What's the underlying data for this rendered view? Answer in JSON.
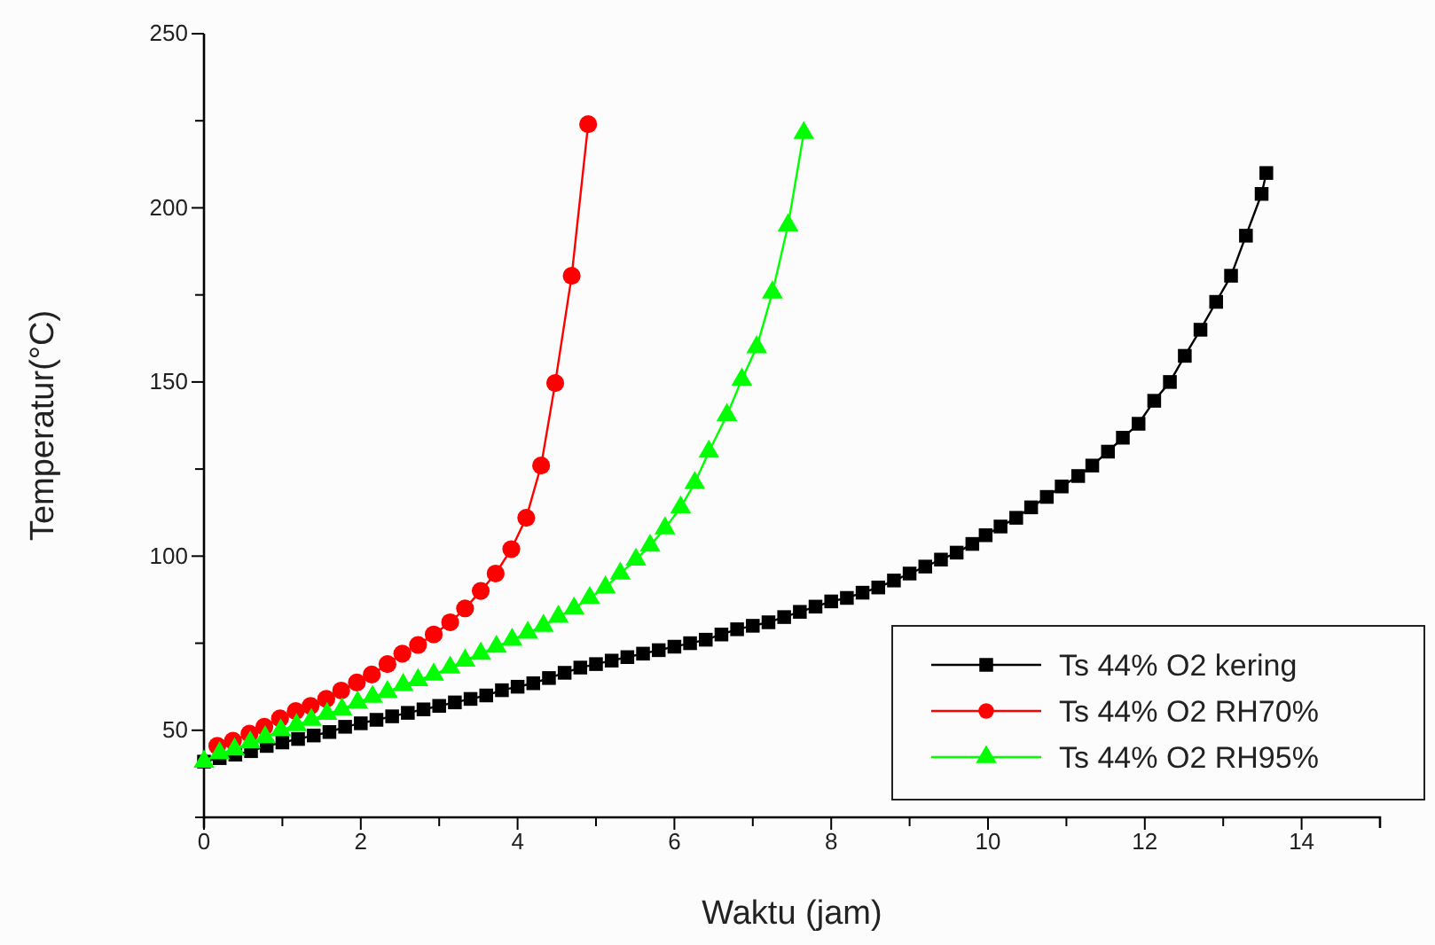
{
  "chart_data": {
    "type": "line",
    "xlabel": "Waktu (jam)",
    "ylabel": "Temperatur(°C)",
    "xlim": [
      0,
      15
    ],
    "ylim": [
      25,
      250
    ],
    "xticks": [
      0,
      {
        "value": 1,
        "label": null
      },
      2,
      {
        "value": 3,
        "label": null
      },
      4,
      {
        "value": 5,
        "label": null
      },
      6,
      {
        "value": 7,
        "label": null
      },
      8,
      {
        "value": 9,
        "label": null
      },
      10,
      {
        "value": 11,
        "label": null
      },
      12,
      {
        "value": 13,
        "label": null
      },
      14,
      {
        "value": 15,
        "label": null
      }
    ],
    "yticks": [
      {
        "value": 25,
        "label": null
      },
      50,
      {
        "value": 75,
        "label": null
      },
      100,
      {
        "value": 125,
        "label": null
      },
      150,
      {
        "value": 175,
        "label": null
      },
      200,
      {
        "value": 225,
        "label": null
      },
      250
    ],
    "grid": false,
    "legend": "bottom right",
    "series": [
      {
        "name": "Ts 44% O2 kering",
        "color": "#000000",
        "marker": "square",
        "x": [
          0,
          0.2,
          0.4,
          0.6,
          0.8,
          1.0,
          1.2,
          1.4,
          1.6,
          1.8,
          2.0,
          2.2,
          2.4,
          2.6,
          2.8,
          3.0,
          3.2,
          3.4,
          3.6,
          3.8,
          4.0,
          4.2,
          4.4,
          4.6,
          4.8,
          5.0,
          5.2,
          5.4,
          5.6,
          5.8,
          6.0,
          6.2,
          6.4,
          6.6,
          6.8,
          7.0,
          7.2,
          7.4,
          7.6,
          7.8,
          8.0,
          8.2,
          8.4,
          8.6,
          8.8,
          9.0,
          9.2,
          9.4,
          9.6,
          9.8,
          9.97,
          10.16,
          10.36,
          10.55,
          10.75,
          10.94,
          11.15,
          11.33,
          11.53,
          11.72,
          11.92,
          12.12,
          12.32,
          12.51,
          12.71,
          12.91,
          13.1,
          13.29,
          13.49,
          13.55
        ],
        "values": [
          41,
          42,
          43,
          44,
          45.5,
          46.5,
          47.5,
          48.5,
          49.5,
          51,
          52,
          53,
          54,
          55,
          56,
          57,
          58,
          59,
          60,
          61.5,
          62.5,
          63.5,
          65,
          66.5,
          68,
          69,
          70,
          71,
          72,
          73,
          74,
          75,
          76,
          77.5,
          79,
          80,
          81,
          82.5,
          84,
          85.5,
          87,
          88,
          89.5,
          91,
          93,
          95,
          97,
          99,
          101,
          103.5,
          106,
          108.5,
          111,
          114,
          117,
          120,
          123,
          126,
          130,
          134,
          138,
          144.6,
          150,
          157.5,
          165,
          173,
          180.5,
          192,
          204,
          210
        ]
      },
      {
        "name": "Ts 44% O2 RH70%",
        "color": "#ff0000",
        "marker": "circle",
        "x": [
          0.17,
          0.37,
          0.58,
          0.77,
          0.97,
          1.17,
          1.36,
          1.56,
          1.75,
          1.95,
          2.14,
          2.34,
          2.53,
          2.73,
          2.93,
          3.14,
          3.33,
          3.53,
          3.72,
          3.92,
          4.11,
          4.3,
          4.48,
          4.69,
          4.9
        ],
        "values": [
          45.5,
          47,
          49,
          51,
          53.4,
          55.5,
          57,
          59,
          61.4,
          63.7,
          66,
          69,
          72,
          74.5,
          77.5,
          81,
          85,
          90,
          95,
          102,
          111,
          126,
          149.7,
          180.5,
          224
        ]
      },
      {
        "name": "Ts 44% O2 RH95%",
        "color": "#00ff00",
        "marker": "triangle",
        "x": [
          0,
          0.2,
          0.39,
          0.59,
          0.78,
          0.98,
          1.18,
          1.37,
          1.57,
          1.76,
          1.96,
          2.15,
          2.34,
          2.54,
          2.73,
          2.93,
          3.14,
          3.33,
          3.53,
          3.73,
          3.93,
          4.13,
          4.33,
          4.52,
          4.72,
          4.92,
          5.12,
          5.31,
          5.51,
          5.69,
          5.88,
          6.08,
          6.26,
          6.44,
          6.67,
          6.86,
          7.05,
          7.25,
          7.45,
          7.65
        ],
        "values": [
          41,
          43.4,
          44.5,
          46.5,
          48,
          50,
          51.5,
          53,
          54.7,
          56,
          58,
          59.6,
          61,
          63,
          64.4,
          66,
          68,
          70,
          72,
          74,
          76,
          78,
          80,
          82.6,
          85,
          88,
          91,
          95,
          99,
          103,
          108,
          114,
          121,
          130,
          140.5,
          150.7,
          160,
          175.7,
          195,
          221.5
        ]
      }
    ]
  }
}
